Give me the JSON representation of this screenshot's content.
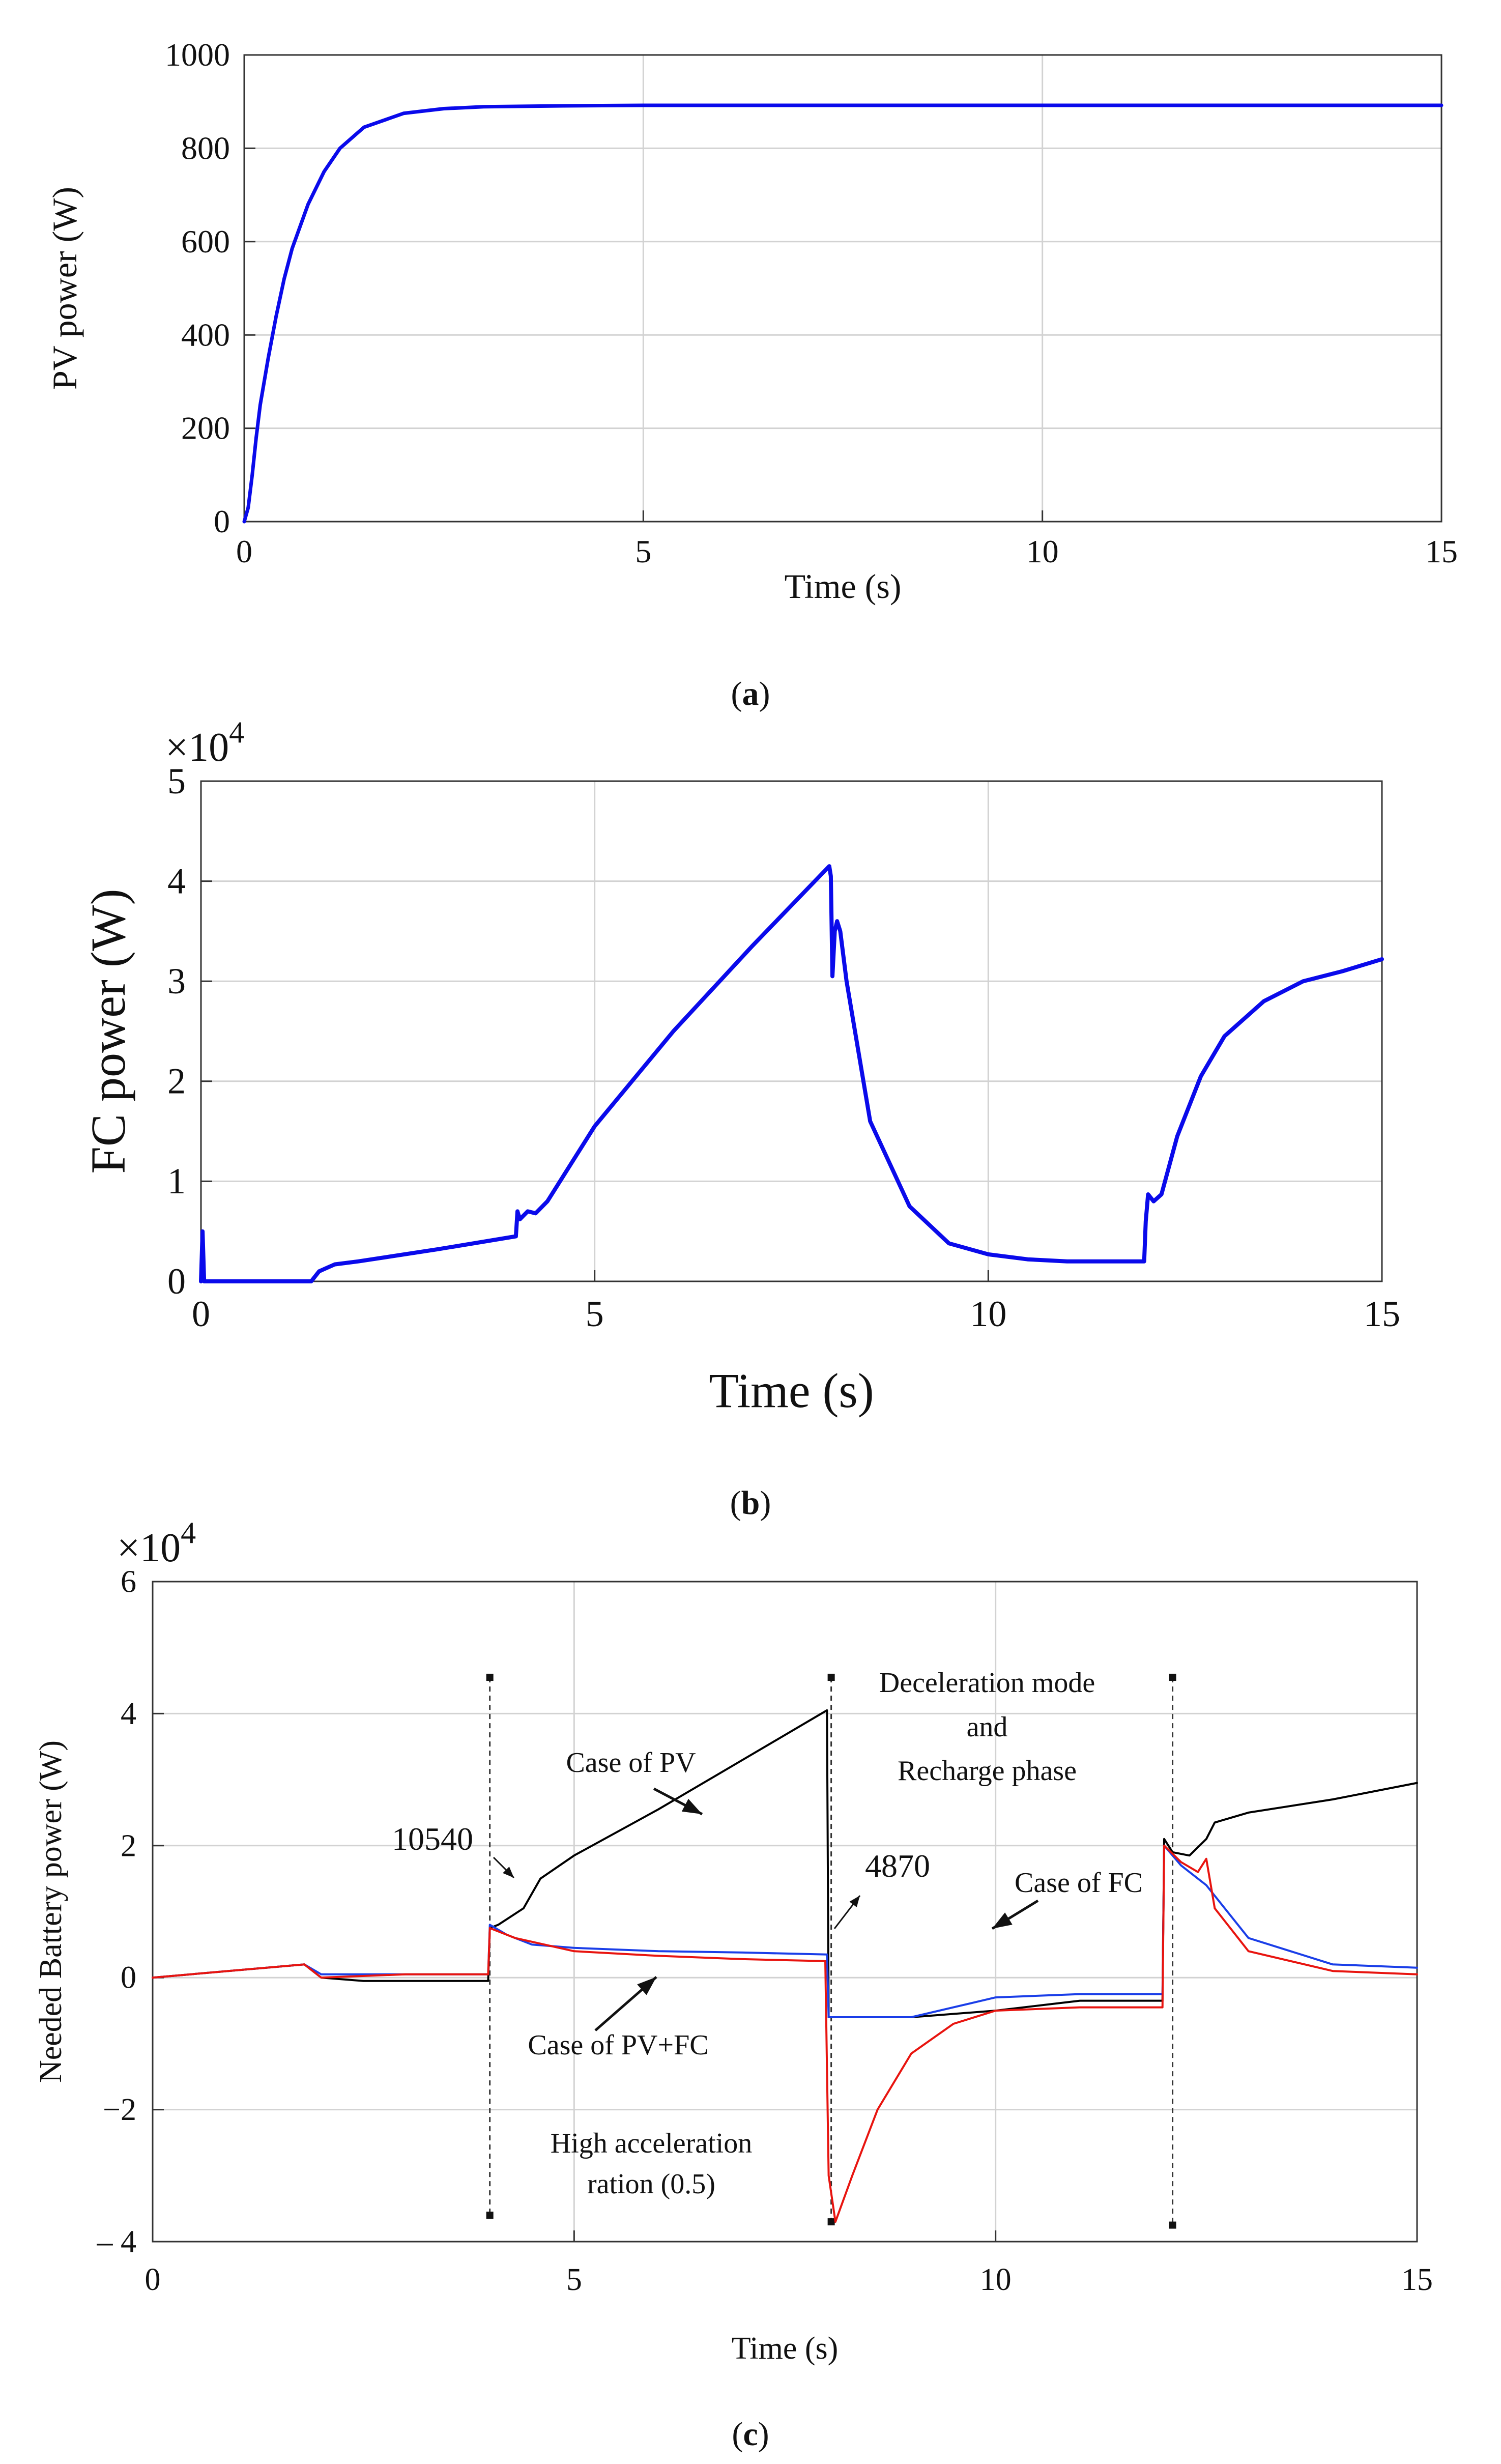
{
  "captions": [
    "a",
    "b",
    "c"
  ],
  "chart_data": [
    {
      "type": "line",
      "panel": "a",
      "title": "",
      "xlabel": "Time (s)",
      "ylabel": "PV power (W)",
      "xlim": [
        0,
        15
      ],
      "ylim": [
        0,
        1000
      ],
      "xticks": [
        0,
        5,
        10,
        15
      ],
      "yticks": [
        0,
        200,
        400,
        600,
        800,
        1000
      ],
      "grid": true,
      "series": [
        {
          "name": "PV power",
          "color": "#0a0aeb",
          "x": [
            0,
            0.05,
            0.1,
            0.15,
            0.2,
            0.3,
            0.4,
            0.5,
            0.6,
            0.8,
            1.0,
            1.2,
            1.5,
            2.0,
            2.5,
            3.0,
            4.0,
            5.0,
            8.0,
            10.0,
            12.0,
            15.0
          ],
          "y": [
            0,
            30,
            100,
            180,
            250,
            350,
            440,
            520,
            585,
            680,
            750,
            800,
            845,
            875,
            885,
            889,
            891,
            892,
            892,
            892,
            892,
            892
          ]
        }
      ]
    },
    {
      "type": "line",
      "panel": "b",
      "title": "",
      "xlabel": "Time (s)",
      "ylabel": "FC power (W)",
      "yexponent_base": "10",
      "yexponent": "4",
      "yexponent_prefix": "×",
      "xlim": [
        0,
        15
      ],
      "ylim": [
        0,
        5
      ],
      "xticks": [
        0,
        5,
        10,
        15
      ],
      "yticks": [
        0,
        1,
        2,
        3,
        4,
        5
      ],
      "grid": true,
      "series": [
        {
          "name": "FC power",
          "color": "#0a0aeb",
          "x": [
            0,
            0.02,
            0.04,
            0.06,
            1.4,
            1.5,
            1.7,
            2.0,
            3.0,
            4.0,
            4.02,
            4.05,
            4.15,
            4.25,
            4.4,
            5.0,
            6.0,
            7.0,
            7.98,
            8.0,
            8.02,
            8.05,
            8.08,
            8.12,
            8.2,
            8.5,
            9.0,
            9.5,
            10.0,
            10.5,
            11.0,
            11.98,
            12.0,
            12.03,
            12.1,
            12.2,
            12.4,
            12.7,
            13.0,
            13.5,
            14.0,
            14.5,
            15.0
          ],
          "y": [
            0,
            0.5,
            0.0,
            0.0,
            0.0,
            0.1,
            0.17,
            0.2,
            0.32,
            0.45,
            0.7,
            0.62,
            0.7,
            0.68,
            0.8,
            1.55,
            2.5,
            3.35,
            4.15,
            4.05,
            3.05,
            3.5,
            3.6,
            3.5,
            3.0,
            1.6,
            0.75,
            0.38,
            0.27,
            0.22,
            0.2,
            0.2,
            0.6,
            0.87,
            0.8,
            0.87,
            1.45,
            2.05,
            2.45,
            2.8,
            3.0,
            3.1,
            3.22
          ]
        }
      ]
    },
    {
      "type": "line",
      "panel": "c",
      "title": "",
      "xlabel": "Time (s)",
      "ylabel": "Needed Battery power (W)",
      "yexponent_base": "10",
      "yexponent": "4",
      "yexponent_prefix": "×",
      "xlim": [
        0,
        15
      ],
      "ylim": [
        -4,
        6
      ],
      "xticks": [
        0,
        5,
        10,
        15
      ],
      "yticks": [
        -4,
        -2,
        0,
        2,
        4,
        6
      ],
      "ytick_labels": [
        "– 4",
        "−2",
        "0",
        "2",
        "4",
        "6"
      ],
      "grid": true,
      "series": [
        {
          "name": "Case of PV",
          "color": "#000000",
          "x": [
            0,
            1.8,
            2.0,
            2.5,
            3.0,
            3.5,
            3.98,
            4.0,
            4.1,
            4.4,
            4.6,
            5.0,
            6.0,
            7.0,
            8.0,
            8.02,
            8.1,
            8.5,
            9.0,
            10.0,
            11.0,
            11.98,
            12.0,
            12.1,
            12.3,
            12.5,
            12.6,
            13.0,
            14.0,
            15.0
          ],
          "y": [
            0,
            0.2,
            0.0,
            -0.05,
            -0.05,
            -0.05,
            -0.05,
            0.75,
            0.8,
            1.05,
            1.5,
            1.85,
            2.55,
            3.3,
            4.05,
            -0.6,
            -0.6,
            -0.6,
            -0.6,
            -0.5,
            -0.35,
            -0.35,
            2.1,
            1.9,
            1.85,
            2.1,
            2.35,
            2.5,
            2.7,
            2.95
          ]
        },
        {
          "name": "Case of FC",
          "color": "#1a3ee8",
          "x": [
            0,
            1.8,
            2.0,
            3.0,
            3.98,
            4.0,
            4.2,
            4.5,
            5.0,
            6.0,
            7.0,
            8.0,
            8.02,
            8.5,
            9.0,
            9.5,
            10.0,
            11.0,
            11.98,
            12.0,
            12.2,
            12.5,
            13.0,
            14.0,
            15.0
          ],
          "y": [
            0,
            0.2,
            0.05,
            0.05,
            0.05,
            0.8,
            0.65,
            0.5,
            0.45,
            0.4,
            0.38,
            0.35,
            -0.6,
            -0.6,
            -0.6,
            -0.45,
            -0.3,
            -0.25,
            -0.25,
            2.0,
            1.7,
            1.4,
            0.6,
            0.2,
            0.15
          ]
        },
        {
          "name": "Case of PV+FC",
          "color": "#e8140f",
          "x": [
            0,
            1.8,
            2.0,
            2.4,
            3.0,
            3.98,
            4.0,
            4.3,
            5.0,
            6.0,
            7.0,
            7.98,
            8.02,
            8.1,
            8.3,
            8.6,
            9.0,
            9.5,
            10.0,
            11.0,
            11.98,
            12.0,
            12.2,
            12.4,
            12.5,
            12.6,
            13.0,
            14.0,
            15.0
          ],
          "y": [
            0,
            0.2,
            0.0,
            0.02,
            0.05,
            0.05,
            0.75,
            0.6,
            0.4,
            0.33,
            0.28,
            0.25,
            -3.0,
            -3.7,
            -3.0,
            -2.0,
            -1.15,
            -0.7,
            -0.5,
            -0.45,
            -0.45,
            2.0,
            1.75,
            1.6,
            1.8,
            1.05,
            0.4,
            0.1,
            0.05
          ]
        }
      ],
      "markers": [
        {
          "x": 4.0,
          "ymin": -3.6,
          "ymax": 4.55
        },
        {
          "x": 8.05,
          "ymin": -3.7,
          "ymax": 4.55
        },
        {
          "x": 12.1,
          "ymin": -3.75,
          "ymax": 4.55
        }
      ],
      "annotations": [
        {
          "id": "pv",
          "text": "Case of PV"
        },
        {
          "id": "pvfc",
          "text": "Case of PV+FC"
        },
        {
          "id": "fc",
          "text": "Case of FC"
        },
        {
          "id": "v10540",
          "text": "10540"
        },
        {
          "id": "v4870",
          "text": "4870"
        },
        {
          "id": "decel1",
          "text": "Deceleration mode"
        },
        {
          "id": "decel2",
          "text": "and"
        },
        {
          "id": "decel3",
          "text": "Recharge phase"
        },
        {
          "id": "accel1",
          "text": "High acceleration"
        },
        {
          "id": "accel2",
          "text": "ration (0.5)"
        }
      ]
    }
  ]
}
